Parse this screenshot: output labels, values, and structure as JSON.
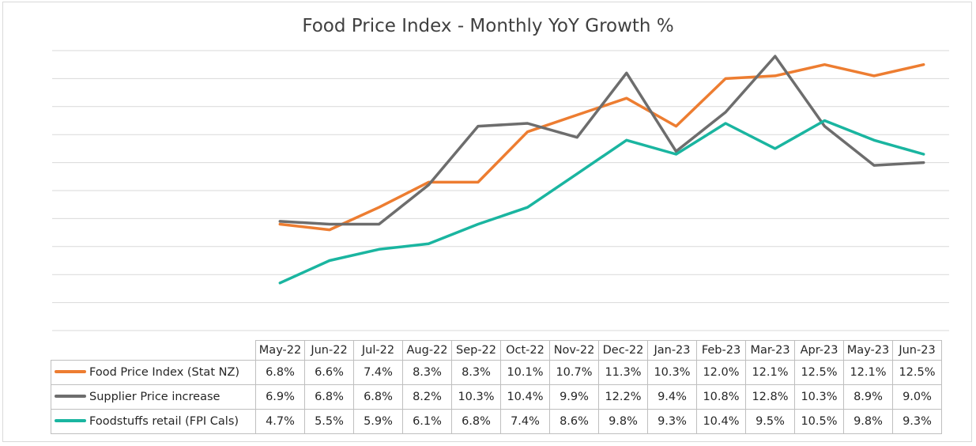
{
  "chart_data": {
    "type": "line",
    "title": "Food Price Index - Monthly YoY Growth %",
    "categories": [
      "May-22",
      "Jun-22",
      "Jul-22",
      "Aug-22",
      "Sep-22",
      "Oct-22",
      "Nov-22",
      "Dec-22",
      "Jan-23",
      "Feb-23",
      "Mar-23",
      "Apr-23",
      "May-23",
      "Jun-23"
    ],
    "ylim": [
      3,
      13
    ],
    "grid": true,
    "legend": "data table below chart",
    "series": [
      {
        "name": "Food Price Index (Stat NZ)",
        "color": "#ed7d31",
        "values": [
          6.8,
          6.6,
          7.4,
          8.3,
          8.3,
          10.1,
          10.7,
          11.3,
          10.3,
          12.0,
          12.1,
          12.5,
          12.1,
          12.5
        ],
        "labels": [
          "6.8%",
          "6.6%",
          "7.4%",
          "8.3%",
          "8.3%",
          "10.1%",
          "10.7%",
          "11.3%",
          "10.3%",
          "12.0%",
          "12.1%",
          "12.5%",
          "12.1%",
          "12.5%"
        ]
      },
      {
        "name": "Supplier Price increase",
        "color": "#6d6d6d",
        "values": [
          6.9,
          6.8,
          6.8,
          8.2,
          10.3,
          10.4,
          9.9,
          12.2,
          9.4,
          10.8,
          12.8,
          10.3,
          8.9,
          9.0
        ],
        "labels": [
          "6.9%",
          "6.8%",
          "6.8%",
          "8.2%",
          "10.3%",
          "10.4%",
          "9.9%",
          "12.2%",
          "9.4%",
          "10.8%",
          "12.8%",
          "10.3%",
          "8.9%",
          "9.0%"
        ]
      },
      {
        "name": "Foodstuffs retail (FPI Cals)",
        "color": "#1ab5a0",
        "values": [
          4.7,
          5.5,
          5.9,
          6.1,
          6.8,
          7.4,
          8.6,
          9.8,
          9.3,
          10.4,
          9.5,
          10.5,
          9.8,
          9.3
        ],
        "labels": [
          "4.7%",
          "5.5%",
          "5.9%",
          "6.1%",
          "6.8%",
          "7.4%",
          "8.6%",
          "9.8%",
          "9.3%",
          "10.4%",
          "9.5%",
          "10.5%",
          "9.8%",
          "9.3%"
        ]
      }
    ]
  }
}
